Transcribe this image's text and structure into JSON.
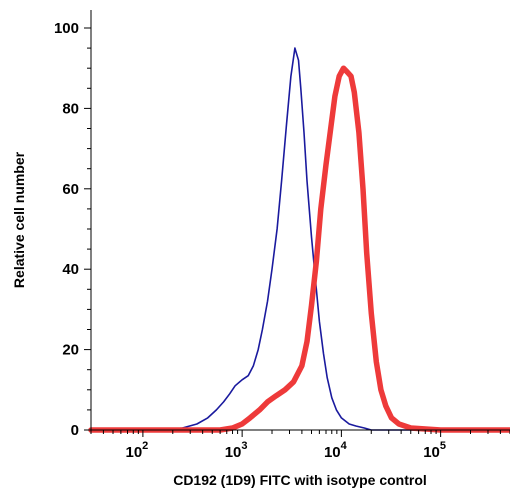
{
  "chart_data": {
    "type": "line",
    "title": "",
    "xlabel": "CD192 (1D9) FITC with isotype control",
    "ylabel": "Relative cell number",
    "x_scale": "log",
    "xlim": [
      30,
      500000
    ],
    "ylim": [
      0,
      105
    ],
    "grid": false,
    "legend": "none",
    "y_ticks": [
      {
        "value": 0,
        "label": "0"
      },
      {
        "value": 20,
        "label": "20"
      },
      {
        "value": 40,
        "label": "40"
      },
      {
        "value": 60,
        "label": "60"
      },
      {
        "value": 80,
        "label": "80"
      },
      {
        "value": 100,
        "label": "100"
      }
    ],
    "x_ticks": [
      {
        "value": 100,
        "base": "10",
        "exp": "2"
      },
      {
        "value": 1000,
        "base": "10",
        "exp": "3"
      },
      {
        "value": 10000,
        "base": "10",
        "exp": "4"
      },
      {
        "value": 100000,
        "base": "10",
        "exp": "5"
      }
    ],
    "series": [
      {
        "color": "#1a1a9e",
        "style": "thin",
        "x": [
          30,
          150,
          250,
          350,
          450,
          550,
          650,
          750,
          850,
          1000,
          1150,
          1300,
          1450,
          1600,
          1800,
          2000,
          2250,
          2500,
          2800,
          3100,
          3400,
          3700,
          3900,
          4200,
          4500,
          5000,
          5500,
          6000,
          6600,
          7200,
          8000,
          8900,
          10000,
          12000,
          14000,
          17000,
          20000,
          30000,
          100000,
          500000
        ],
        "y": [
          0,
          0,
          0.5,
          1.5,
          3,
          5,
          7,
          9,
          11,
          12.5,
          13.5,
          16,
          20,
          25,
          32,
          40,
          50,
          62,
          76,
          88,
          95,
          92,
          85,
          74,
          62,
          48,
          37,
          27,
          19,
          13,
          8,
          5,
          3,
          1.5,
          1,
          0.5,
          0,
          0,
          0,
          0
        ]
      },
      {
        "color": "#ee3a3a",
        "style": "thick",
        "x": [
          30,
          600,
          800,
          1000,
          1200,
          1500,
          1800,
          2200,
          2700,
          3300,
          4000,
          4500,
          5000,
          5600,
          6200,
          7000,
          7800,
          8600,
          9500,
          10500,
          11500,
          12500,
          13500,
          15000,
          16500,
          18000,
          20000,
          22500,
          25000,
          28000,
          32000,
          38000,
          50000,
          100000,
          500000
        ],
        "y": [
          0,
          0,
          0.5,
          1.5,
          3,
          5,
          7,
          8.5,
          10,
          12,
          16,
          22,
          31,
          42,
          55,
          66,
          75,
          83,
          88,
          90,
          89,
          88,
          84,
          74,
          60,
          44,
          29,
          17,
          10,
          6,
          3,
          1.5,
          0.5,
          0,
          0
        ]
      }
    ]
  }
}
